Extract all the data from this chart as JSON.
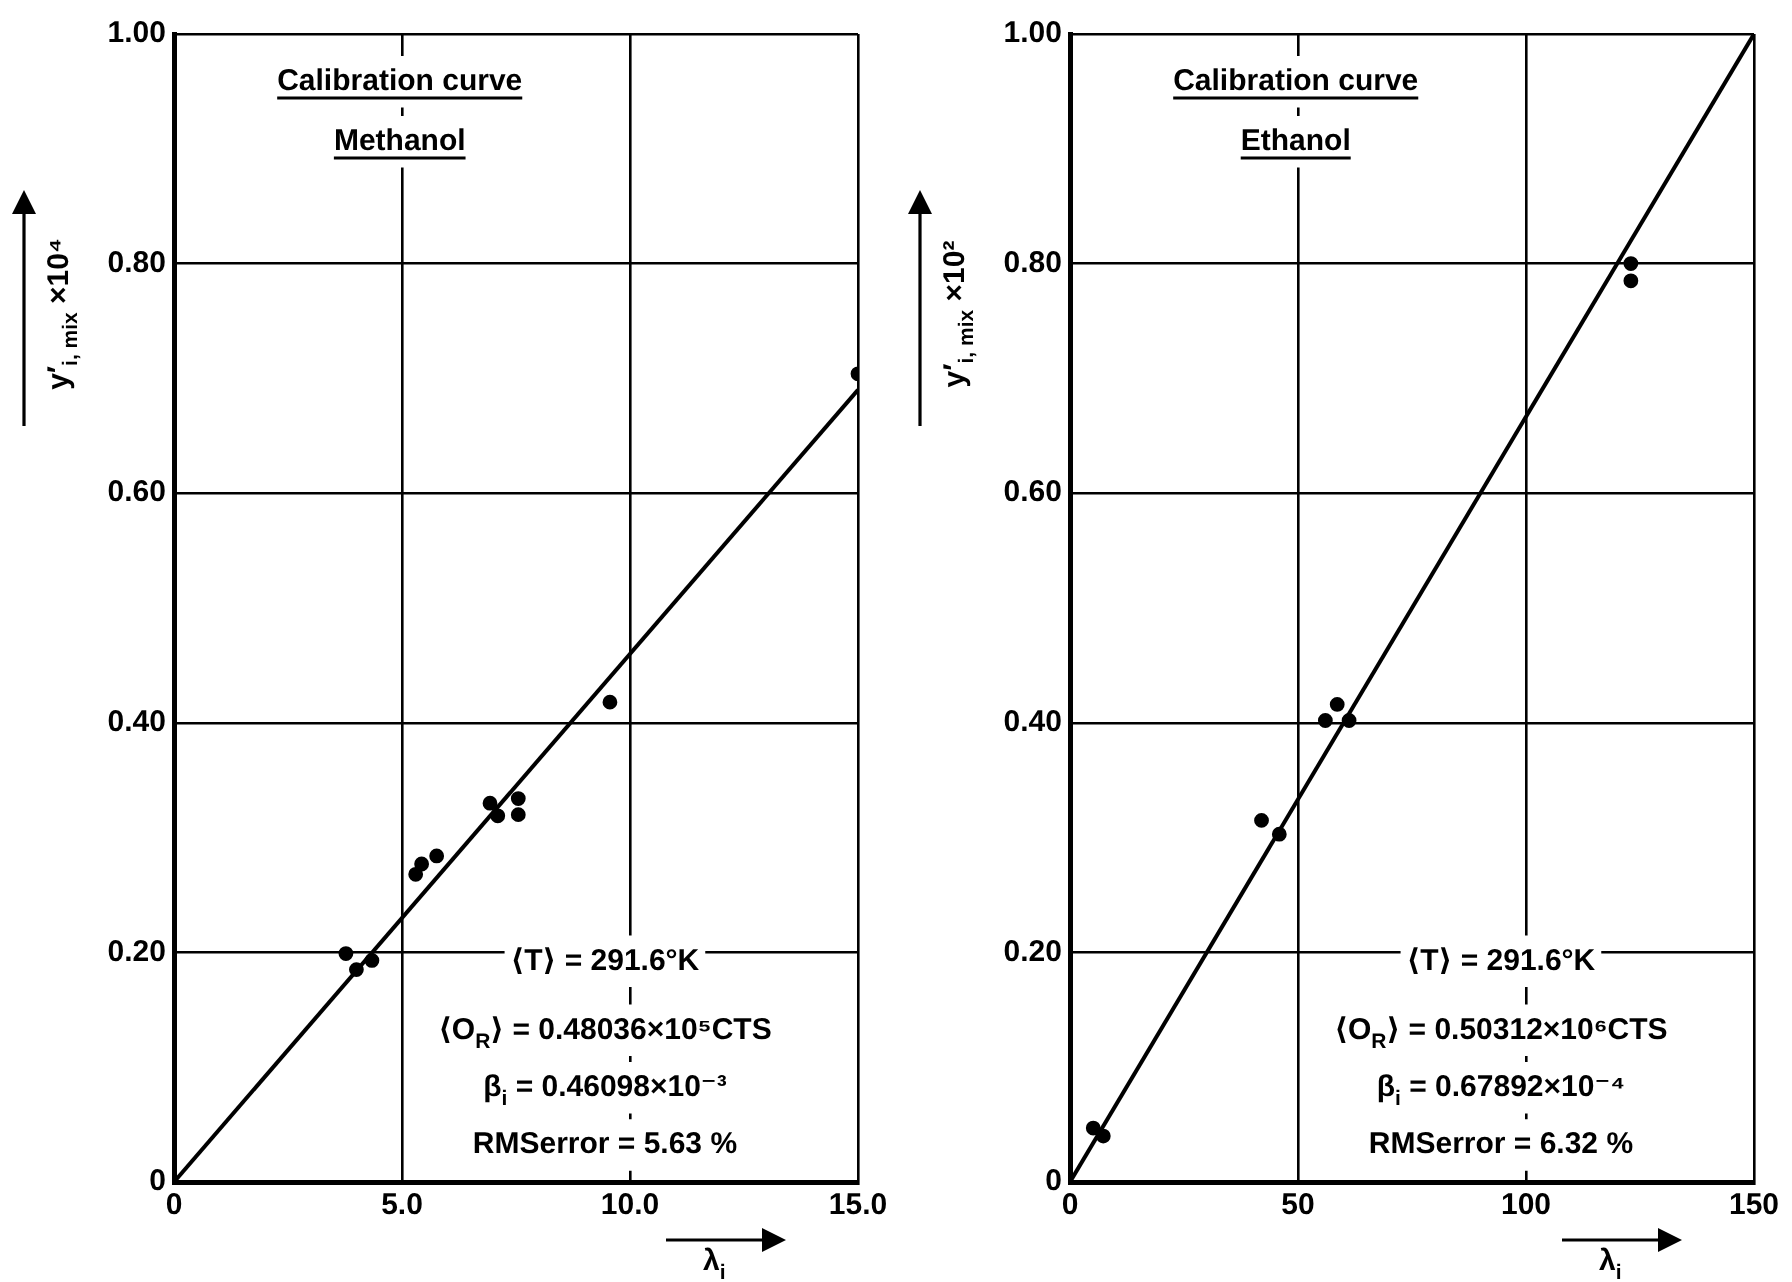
{
  "chart_data": [
    {
      "type": "scatter",
      "title": "Calibration curve",
      "subtitle": "Methanol",
      "xlabel": "λ$_{i}$",
      "ylabel": "y′$_{i, mix}$ ×10⁴",
      "xlim": [
        0,
        15
      ],
      "ylim": [
        0,
        1
      ],
      "xticks": [
        0,
        {
          "value": 5,
          "label": "5.0"
        },
        {
          "value": 10,
          "label": "10.0"
        },
        {
          "value": 15,
          "label": "15.0"
        }
      ],
      "yticks": [
        0,
        {
          "value": 0.2,
          "label": "0.20"
        },
        {
          "value": 0.4,
          "label": "0.40"
        },
        {
          "value": 0.6,
          "label": "0.60"
        },
        {
          "value": 0.8,
          "label": "0.80"
        },
        {
          "value": 1,
          "label": "1.00"
        }
      ],
      "grid": true,
      "marker": "circle",
      "annotations": [
        "⟨T⟩ = 291.6°K",
        "⟨O$_{R}$⟩ = 0.48036×10⁵CTS",
        "β$_{i}$ = 0.46098×10⁻³",
        "RMSerror = 5.63 %"
      ],
      "series": [
        {
          "color": "#000000",
          "x": [
            3.77,
            4.0,
            4.34,
            5.3,
            5.43,
            5.76,
            6.93,
            7.1,
            7.55,
            7.55,
            9.56,
            15.0
          ],
          "values": [
            0.199,
            0.185,
            0.193,
            0.268,
            0.277,
            0.284,
            0.33,
            0.319,
            0.334,
            0.32,
            0.418,
            0.704
          ]
        },
        {
          "type": "line",
          "color": "#000000",
          "marker": "none",
          "x": [
            0,
            15
          ],
          "values": [
            0,
            0.69
          ]
        }
      ]
    },
    {
      "type": "scatter",
      "title": "Calibration curve",
      "subtitle": "Ethanol",
      "xlabel": "λ$_{i}$",
      "ylabel": "y′$_{i, mix}$ ×10²",
      "xlim": [
        0,
        150
      ],
      "ylim": [
        0,
        1
      ],
      "xticks": [
        0,
        50,
        100,
        150
      ],
      "yticks": [
        0,
        {
          "value": 0.2,
          "label": "0.20"
        },
        {
          "value": 0.4,
          "label": "0.40"
        },
        {
          "value": 0.6,
          "label": "0.60"
        },
        {
          "value": 0.8,
          "label": "0.80"
        },
        {
          "value": 1,
          "label": "1.00"
        }
      ],
      "grid": true,
      "marker": "circle",
      "annotations": [
        "⟨T⟩ = 291.6°K",
        "⟨O$_{R}$⟩ = 0.50312×10⁶CTS",
        "β$_{i}$ = 0.67892×10⁻⁴",
        "RMSerror = 6.32 %"
      ],
      "series": [
        {
          "color": "#000000",
          "x": [
            5.1,
            7.3,
            42,
            45.9,
            56,
            58.6,
            61.2,
            123,
            123
          ],
          "values": [
            0.047,
            0.04,
            0.315,
            0.303,
            0.402,
            0.416,
            0.402,
            0.8,
            0.785
          ]
        },
        {
          "type": "line",
          "color": "#000000",
          "marker": "none",
          "x": [
            0,
            150
          ],
          "values": [
            0,
            1.0
          ]
        }
      ]
    }
  ]
}
